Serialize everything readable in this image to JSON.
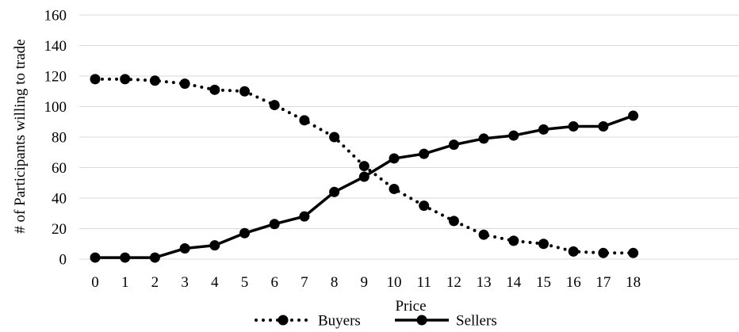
{
  "chart_data": {
    "type": "line",
    "title": "",
    "xlabel": "Price",
    "ylabel": "# of Participants willing to trade",
    "x": [
      0,
      1,
      2,
      3,
      4,
      5,
      6,
      7,
      8,
      9,
      10,
      11,
      12,
      13,
      14,
      15,
      16,
      17,
      18
    ],
    "ylim": [
      0,
      160
    ],
    "yticks": [
      0,
      20,
      40,
      60,
      80,
      100,
      120,
      140,
      160
    ],
    "grid": true,
    "legend_position": "bottom",
    "series": [
      {
        "name": "Buyers",
        "style": "dotted",
        "color": "#000000",
        "values": [
          118,
          118,
          117,
          115,
          111,
          110,
          101,
          91,
          80,
          61,
          46,
          35,
          25,
          16,
          12,
          10,
          5,
          4,
          4
        ]
      },
      {
        "name": "Sellers",
        "style": "solid",
        "color": "#000000",
        "values": [
          1,
          1,
          1,
          7,
          9,
          17,
          23,
          28,
          44,
          54,
          66,
          69,
          75,
          79,
          81,
          85,
          87,
          87,
          94
        ]
      }
    ]
  }
}
